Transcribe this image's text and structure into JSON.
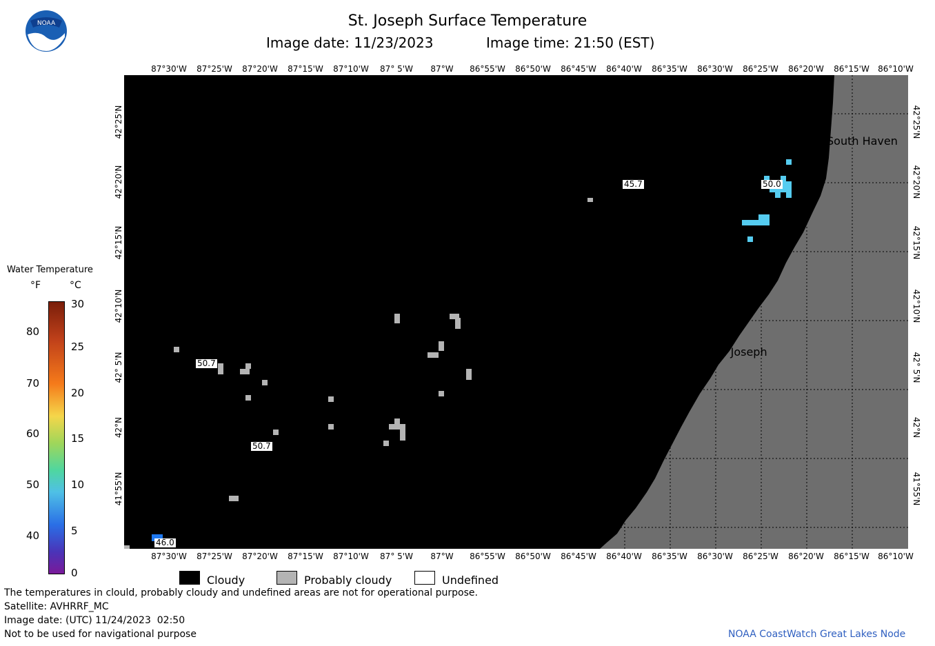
{
  "header": {
    "title": "St. Joseph Surface Temperature",
    "image_date_label": "Image date: 11/23/2023",
    "image_time_label": "Image time: 21:50 (EST)"
  },
  "logo": {
    "text": "NOAA"
  },
  "axes": {
    "lon_labels": [
      "87°30'W",
      "87°25'W",
      "87°20'W",
      "87°15'W",
      "87°10'W",
      "87° 5'W",
      "87°W",
      "86°55'W",
      "86°50'W",
      "86°45'W",
      "86°40'W",
      "86°35'W",
      "86°30'W",
      "86°25'W",
      "86°20'W",
      "86°15'W",
      "86°10'W"
    ],
    "lat_labels": [
      "42°25'N",
      "42°20'N",
      "42°15'N",
      "42°10'N",
      "42° 5'N",
      "42°N",
      "41°55'N"
    ]
  },
  "legend": {
    "title": "Water Temperature",
    "unit_f": "°F",
    "unit_c": "°C",
    "f_ticks": [
      "80",
      "70",
      "60",
      "50",
      "40"
    ],
    "c_ticks": [
      "30",
      "25",
      "20",
      "15",
      "10",
      "5",
      "0"
    ]
  },
  "map": {
    "cities": [
      {
        "name": "South Haven"
      },
      {
        "name": "St. Joseph"
      }
    ],
    "temperature_labels": [
      "45.7",
      "50.0",
      "50.7",
      "50.7",
      "46.0"
    ]
  },
  "key": {
    "cloudy": "Cloudy",
    "probably_cloudy": "Probably cloudy",
    "undefined": "Undefined"
  },
  "footer": {
    "line1": "The temperatures in clould, probably cloudy and undefined areas are not for operational purpose.",
    "line2": "Satellite: AVHRRF_MC",
    "line3": "Image date: (UTC) 11/24/2023  02:50",
    "line4": "Not to be used for navigational purpose",
    "credit": "NOAA CoastWatch Great Lakes Node"
  },
  "colors": {
    "cloud": "#000000",
    "probably_cloudy": "#b4b4b4",
    "land": "#6e6e6e",
    "warm_water_pixel": "#55ccf0",
    "credit": "#2f5fc0"
  }
}
